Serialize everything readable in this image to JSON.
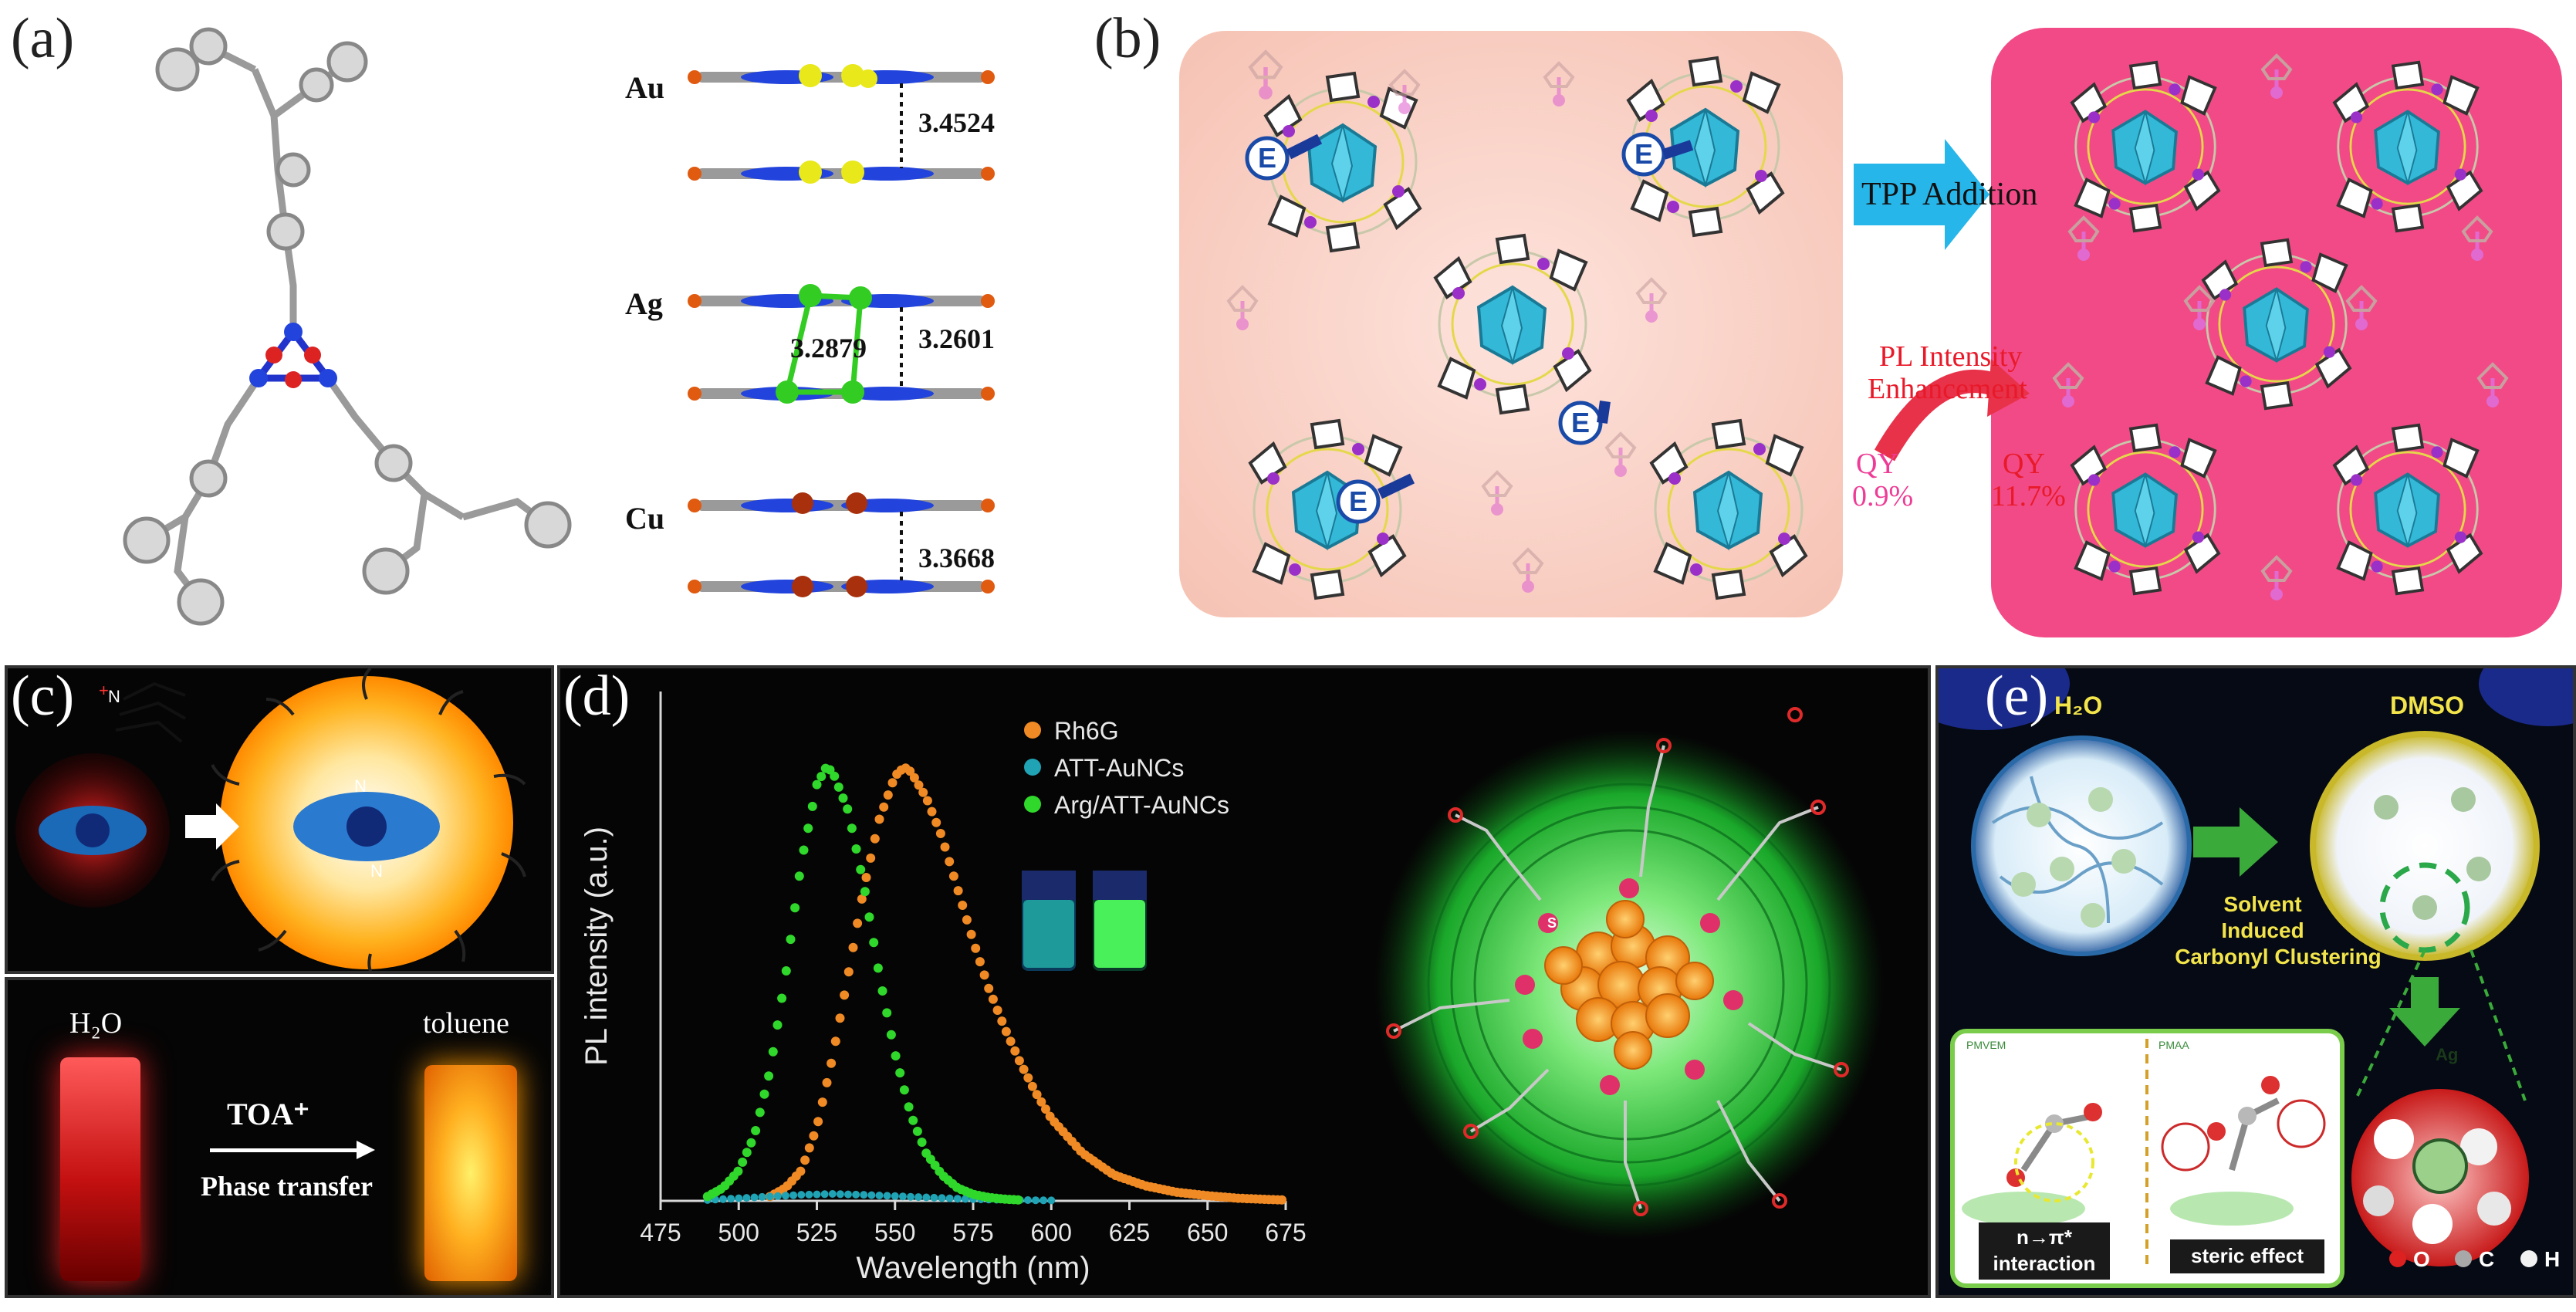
{
  "panels": {
    "a": {
      "label": "(a)",
      "metals": [
        {
          "name": "Au",
          "distances": [
            "3.4524"
          ]
        },
        {
          "name": "Ag",
          "distances": [
            "3.2879",
            "3.2601"
          ]
        },
        {
          "name": "Cu",
          "distances": [
            "3.3668"
          ]
        }
      ]
    },
    "b": {
      "label": "(b)",
      "e_marker": "E",
      "arrow_text": "TPP Addition",
      "pl_text_line1": "PL Intensity",
      "pl_text_line2": "Enhancement",
      "qy_left_label": "QY",
      "qy_left_value": "0.9%",
      "qy_right_label": "QY",
      "qy_right_value": "11.7%"
    },
    "c": {
      "label": "(c)",
      "n_label": "N",
      "n_plus": "+",
      "left_solvent": "H₂O",
      "right_solvent": "toluene",
      "reagent": "TOA⁺",
      "process": "Phase transfer"
    },
    "d": {
      "label": "(d)",
      "s_label": "S"
    },
    "e": {
      "label": "(e)",
      "left_title": "H₂O",
      "right_title": "DMSO",
      "arrow_line1": "Solvent",
      "arrow_line2": "Induced",
      "arrow_line3": "Carbonyl Clustering",
      "sub_left_tag": "PMVEM",
      "sub_right_tag": "PMAA",
      "interaction_line1": "n→π*",
      "interaction_line2": "interaction",
      "steric_label": "steric effect",
      "center_atom": "Ag",
      "atom_legend": [
        "O",
        "C",
        "H"
      ]
    }
  },
  "colors": {
    "rh6g": "#f08a24",
    "att": "#1fa3b5",
    "arg_att": "#2fd82a",
    "pink_bg": "#f7cfc4",
    "magenta_bg": "#f24a86",
    "arrow_blue": "#27b6ea"
  },
  "chart_data": {
    "type": "scatter",
    "title": "",
    "xlabel": "Wavelength (nm)",
    "ylabel": "PL intensity (a.u.)",
    "xlim": [
      475,
      675
    ],
    "ylim": [
      0,
      1.05
    ],
    "xticks": [
      "475",
      "500",
      "525",
      "550",
      "575",
      "600",
      "625",
      "650",
      "675"
    ],
    "legend_position": "top-right",
    "series": [
      {
        "name": "Rh6G",
        "peak": 553,
        "x": [
          510,
          515,
          520,
          525,
          530,
          535,
          540,
          545,
          550,
          553,
          555,
          560,
          565,
          570,
          575,
          580,
          585,
          590,
          595,
          600,
          610,
          620,
          630,
          640,
          650,
          660,
          670,
          675
        ],
        "y": [
          0.01,
          0.03,
          0.07,
          0.17,
          0.33,
          0.52,
          0.72,
          0.88,
          0.98,
          1.0,
          0.99,
          0.93,
          0.84,
          0.72,
          0.6,
          0.49,
          0.4,
          0.32,
          0.25,
          0.19,
          0.11,
          0.06,
          0.035,
          0.02,
          0.012,
          0.006,
          0.003,
          0.002
        ]
      },
      {
        "name": "ATT-AuNCs",
        "peak": 530,
        "x": [
          490,
          500,
          510,
          520,
          530,
          540,
          550,
          560,
          570,
          580,
          590,
          600
        ],
        "y": [
          0.002,
          0.006,
          0.01,
          0.014,
          0.016,
          0.014,
          0.011,
          0.008,
          0.005,
          0.003,
          0.002,
          0.001
        ]
      },
      {
        "name": "Arg/ATT-AuNCs",
        "peak": 528,
        "x": [
          490,
          495,
          500,
          505,
          510,
          515,
          520,
          525,
          528,
          530,
          535,
          540,
          545,
          550,
          555,
          560,
          565,
          570,
          575,
          580,
          585,
          590
        ],
        "y": [
          0.01,
          0.03,
          0.07,
          0.15,
          0.3,
          0.52,
          0.78,
          0.96,
          1.0,
          0.99,
          0.9,
          0.73,
          0.52,
          0.34,
          0.2,
          0.11,
          0.06,
          0.03,
          0.015,
          0.008,
          0.004,
          0.002
        ]
      }
    ]
  }
}
